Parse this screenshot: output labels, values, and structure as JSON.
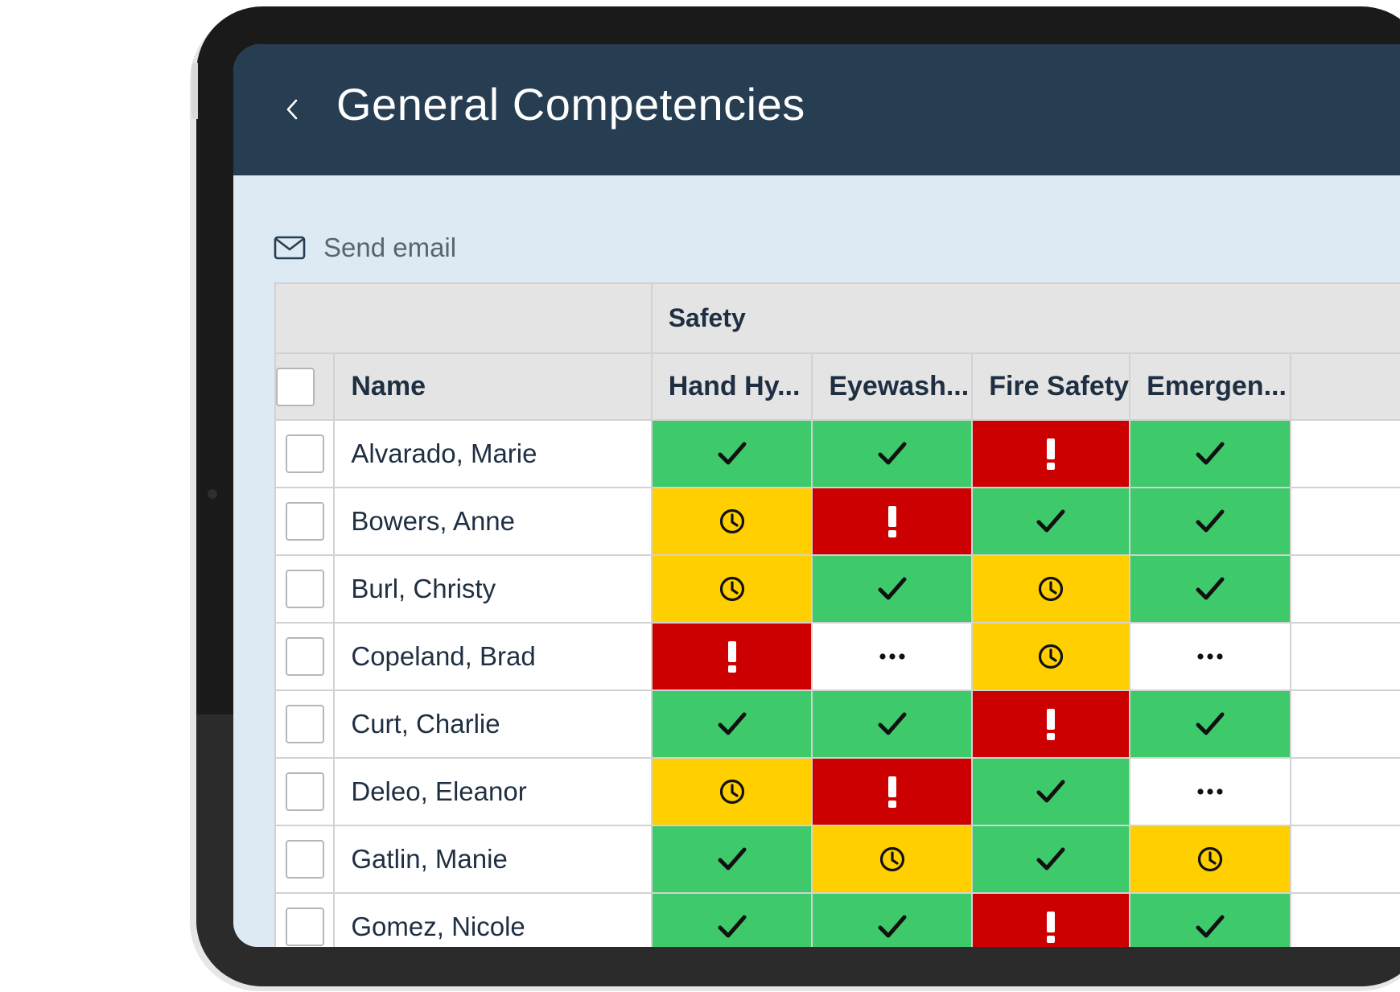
{
  "header": {
    "title": "General Competencies",
    "back_icon": "chevron-left-icon"
  },
  "toolbar": {
    "send_email_label": "Send email",
    "send_email_icon": "envelope-icon"
  },
  "colors": {
    "header_bg": "#263d52",
    "screen_bg": "#dde9f3",
    "complete": "#3ec96b",
    "pending": "#ffcf00",
    "overdue": "#cc0000",
    "not_started": "#ffffff"
  },
  "table": {
    "group_label": "Safety",
    "name_header": "Name",
    "columns": [
      "Hand Hy...",
      "Eyewash...",
      "Fire Safety",
      "Emergen..."
    ],
    "rows": [
      {
        "name": "Alvarado, Marie",
        "statuses": [
          "complete",
          "complete",
          "overdue",
          "complete"
        ]
      },
      {
        "name": "Bowers, Anne",
        "statuses": [
          "pending",
          "overdue",
          "complete",
          "complete"
        ]
      },
      {
        "name": "Burl, Christy",
        "statuses": [
          "pending",
          "complete",
          "pending",
          "complete"
        ]
      },
      {
        "name": "Copeland, Brad",
        "statuses": [
          "overdue",
          "not_started",
          "pending",
          "not_started"
        ]
      },
      {
        "name": "Curt, Charlie",
        "statuses": [
          "complete",
          "complete",
          "overdue",
          "complete"
        ]
      },
      {
        "name": "Deleo, Eleanor",
        "statuses": [
          "pending",
          "overdue",
          "complete",
          "not_started"
        ]
      },
      {
        "name": "Gatlin, Manie",
        "statuses": [
          "complete",
          "pending",
          "complete",
          "pending"
        ]
      },
      {
        "name": "Gomez, Nicole",
        "statuses": [
          "complete",
          "complete",
          "overdue",
          "complete"
        ]
      }
    ]
  }
}
